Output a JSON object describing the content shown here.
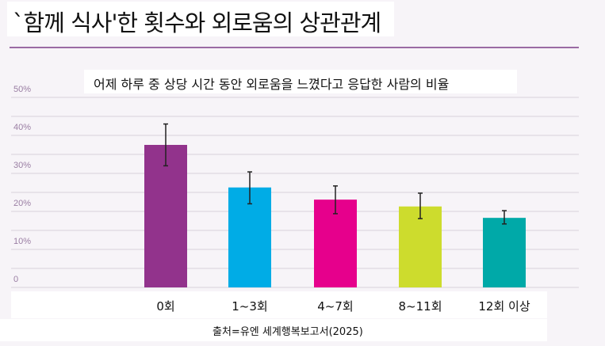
{
  "chart_data": {
    "type": "bar",
    "title": "`함께 식사'한 횟수와 외로움의 상관관계",
    "subtitle": "어제 하루 중 상당 시간 동안 외로움을 느꼈다고 응답한 사람의 비율",
    "source": "출처=유엔 세계행복보고서(2025)",
    "categories": [
      "0회",
      "1~3회",
      "4~7회",
      "8~11회",
      "12회 이상"
    ],
    "values": [
      37.5,
      26.3,
      23.1,
      21.3,
      18.3
    ],
    "error_low": [
      32,
      22,
      19.4,
      18.1,
      16.7
    ],
    "error_high": [
      43,
      30.4,
      26.7,
      24.8,
      20.2
    ],
    "colors": [
      "#92338c",
      "#00ace6",
      "#e6008c",
      "#cddc2d",
      "#00a9a8"
    ],
    "ylim": [
      0,
      50
    ],
    "yticks": [
      0,
      10,
      20,
      30,
      40,
      50
    ],
    "ytick_labels": [
      "0",
      "10%",
      "20%",
      "30%",
      "40%",
      "50%"
    ],
    "grid": true,
    "xlabel": "",
    "ylabel": ""
  }
}
